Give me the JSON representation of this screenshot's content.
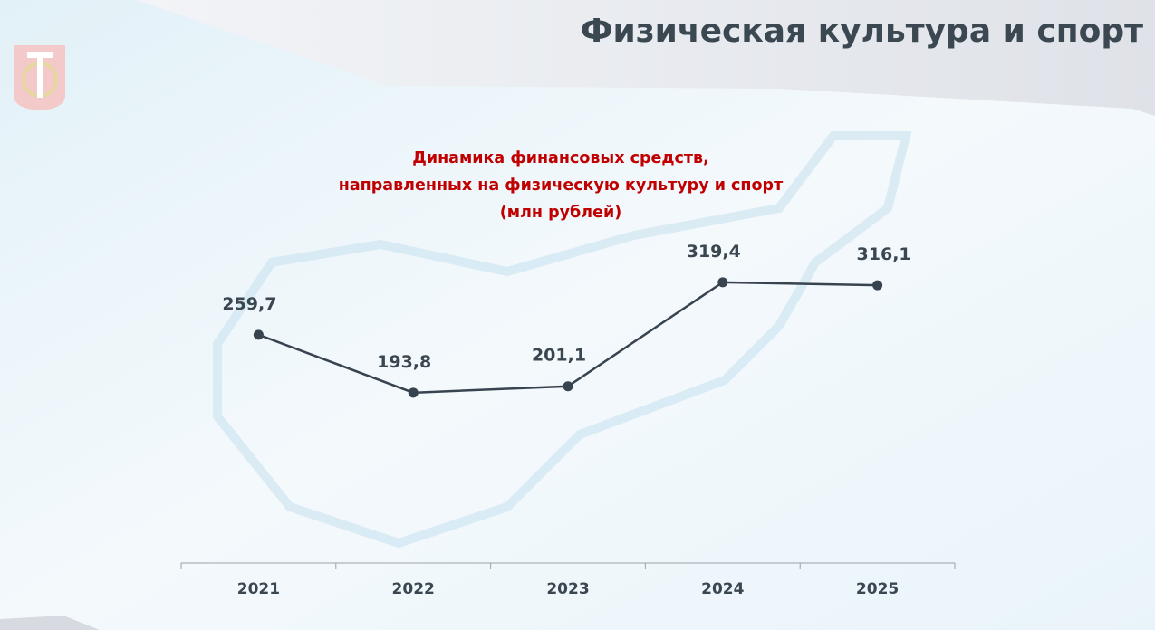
{
  "header": {
    "title": "Физическая культура и спорт"
  },
  "chart_data": {
    "type": "line",
    "title": [
      "Динамика  финансовых средств,",
      "направленных на физическую культуру и спорт",
      "(млн рублей)"
    ],
    "categories": [
      "2021",
      "2022",
      "2023",
      "2024",
      "2025"
    ],
    "series": [
      {
        "color": "#37444f",
        "values": [
          259.7,
          193.8,
          201.1,
          319.4,
          316.1
        ],
        "value_labels": [
          "259,7",
          "193,8",
          "201,1",
          "319,4",
          "316,1"
        ]
      }
    ]
  }
}
